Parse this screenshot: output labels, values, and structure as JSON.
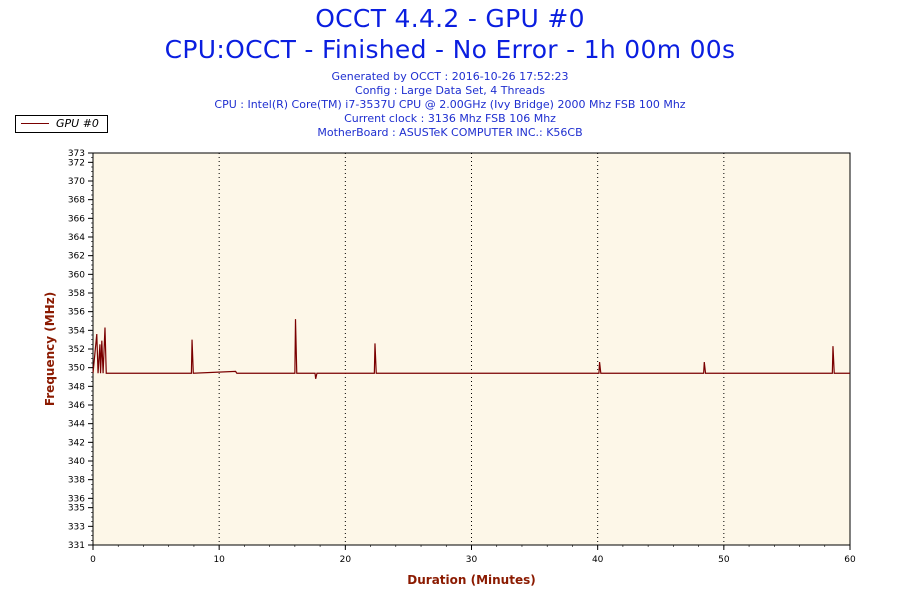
{
  "header": {
    "title": "OCCT 4.4.2 - GPU #0",
    "subtitle": "CPU:OCCT - Finished - No Error - 1h 00m 00s",
    "info_lines": [
      "Generated by OCCT : 2016-10-26 17:52:23",
      "Config : Large Data Set, 4 Threads",
      "CPU : Intel(R) Core(TM) i7-3537U CPU @ 2.00GHz (Ivy Bridge) 2000 Mhz FSB 100 Mhz",
      "Current clock : 3136 Mhz FSB 106 Mhz",
      "MotherBoard : ASUSTeK COMPUTER INC.: K56CB"
    ]
  },
  "legend": {
    "label": "GPU #0",
    "color": "#7a0000"
  },
  "colors": {
    "plot_bg": "#fdf7e8",
    "series": "#7a0000",
    "title": "#0a1ee0",
    "axis_title": "#8b1a00"
  },
  "chart_data": {
    "type": "line",
    "xlabel": "Duration (Minutes)",
    "ylabel": "Frequency (MHz)",
    "xlim": [
      0,
      60
    ],
    "ylim": [
      331,
      373
    ],
    "x_ticks": [
      0,
      10,
      20,
      30,
      40,
      50,
      60
    ],
    "y_ticks": [
      331,
      333,
      335,
      336,
      338,
      340,
      342,
      344,
      346,
      348,
      350,
      352,
      354,
      356,
      358,
      360,
      362,
      364,
      366,
      368,
      370,
      372,
      373
    ],
    "grid": "vertical-dotted",
    "legend_position": "top-left",
    "series": [
      {
        "name": "GPU #0",
        "baseline": 349.4,
        "points": [
          [
            0,
            349.4
          ],
          [
            0.3,
            353.6
          ],
          [
            0.4,
            349.4
          ],
          [
            0.55,
            352.5
          ],
          [
            0.6,
            349.4
          ],
          [
            0.7,
            352.9
          ],
          [
            0.8,
            349.4
          ],
          [
            0.95,
            354.3
          ],
          [
            1.05,
            349.4
          ],
          [
            7.8,
            349.4
          ],
          [
            7.85,
            353.0
          ],
          [
            7.95,
            349.4
          ],
          [
            11.3,
            349.6
          ],
          [
            11.4,
            349.4
          ],
          [
            16.0,
            349.4
          ],
          [
            16.05,
            355.2
          ],
          [
            16.15,
            349.4
          ],
          [
            17.6,
            349.4
          ],
          [
            17.65,
            348.8
          ],
          [
            17.75,
            349.4
          ],
          [
            22.3,
            349.4
          ],
          [
            22.35,
            352.6
          ],
          [
            22.45,
            349.4
          ],
          [
            40.1,
            349.4
          ],
          [
            40.15,
            350.6
          ],
          [
            40.25,
            349.4
          ],
          [
            48.4,
            349.4
          ],
          [
            48.45,
            350.6
          ],
          [
            48.55,
            349.4
          ],
          [
            58.6,
            349.4
          ],
          [
            58.65,
            352.3
          ],
          [
            58.75,
            349.4
          ],
          [
            60,
            349.4
          ]
        ]
      }
    ]
  }
}
